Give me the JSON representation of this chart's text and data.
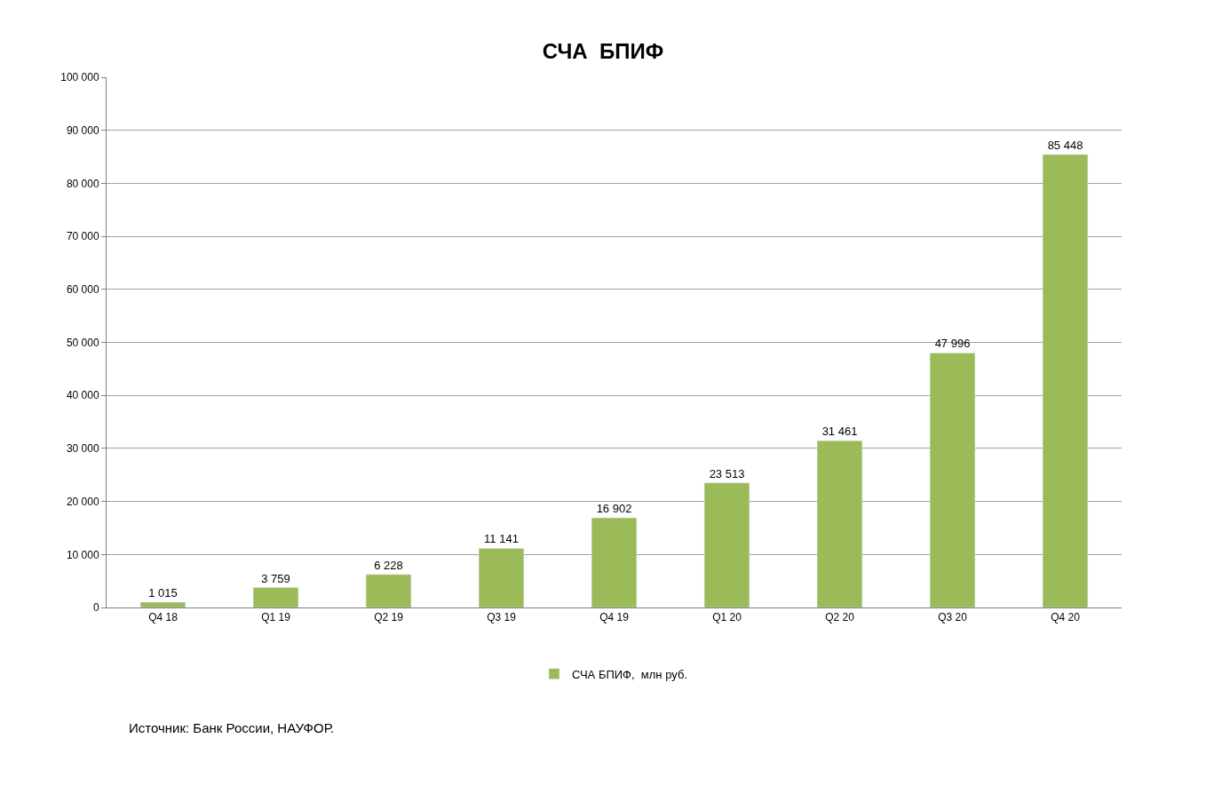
{
  "chart_data": {
    "type": "bar",
    "title": "СЧА  БПИФ",
    "categories": [
      "Q4 18",
      "Q1 19",
      "Q2 19",
      "Q3 19",
      "Q4 19",
      "Q1 20",
      "Q2 20",
      "Q3 20",
      "Q4 20"
    ],
    "series": [
      {
        "name": "СЧА БПИФ,  млн руб.",
        "color": "#9bbb59",
        "values": [
          1015,
          3759,
          6228,
          11141,
          16902,
          23513,
          31461,
          47996,
          85448
        ],
        "value_labels": [
          "1 015",
          "3 759",
          "6 228",
          "11 141",
          "16 902",
          "23 513",
          "31 461",
          "47 996",
          "85 448"
        ]
      }
    ],
    "ylim": [
      0,
      100000
    ],
    "yticks": [
      {
        "value": 0,
        "label": "0"
      },
      {
        "value": 10000,
        "label": "10 000"
      },
      {
        "value": 20000,
        "label": "20 000"
      },
      {
        "value": 30000,
        "label": "30 000"
      },
      {
        "value": 40000,
        "label": "40 000"
      },
      {
        "value": 50000,
        "label": "50 000"
      },
      {
        "value": 60000,
        "label": "60 000"
      },
      {
        "value": 70000,
        "label": "70 000"
      },
      {
        "value": 80000,
        "label": "80 000"
      },
      {
        "value": 90000,
        "label": "90 000"
      },
      {
        "value": 100000,
        "label": "100 000"
      }
    ],
    "grid": "y",
    "legend": "bottom",
    "annotations": [
      "Источник: Банк России, НАУФОР."
    ]
  }
}
